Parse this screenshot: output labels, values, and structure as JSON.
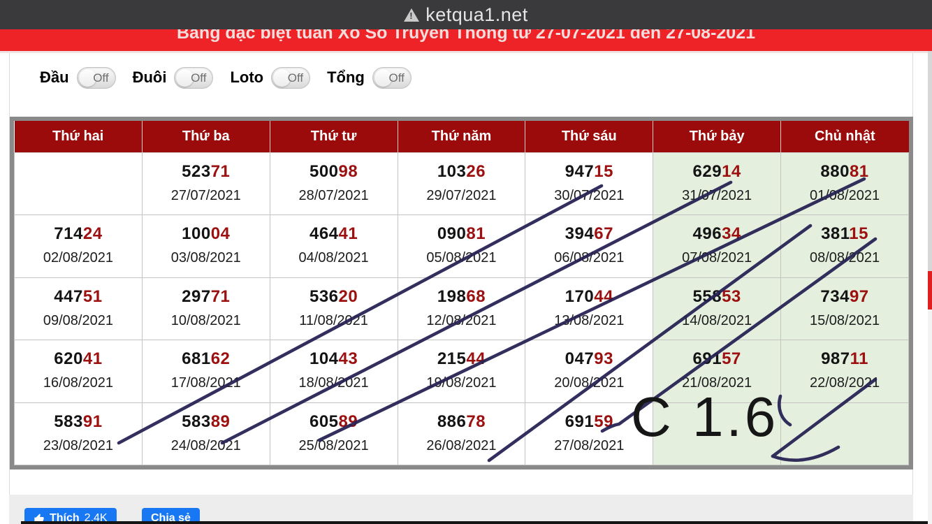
{
  "browser_bar": {
    "title": "ketqua1.net",
    "warning_icon": "not-secure-warning"
  },
  "banner": {
    "title": "Bảng đặc biệt tuần Xổ Số Truyền Thống từ 27-07-2021 đến 27-08-2021"
  },
  "filters": [
    {
      "label": "Đầu",
      "state": "Off"
    },
    {
      "label": "Đuôi",
      "state": "Off"
    },
    {
      "label": "Loto",
      "state": "Off"
    },
    {
      "label": "Tổng",
      "state": "Off"
    }
  ],
  "table": {
    "headers": [
      "Thứ hai",
      "Thứ ba",
      "Thứ tư",
      "Thứ năm",
      "Thứ sáu",
      "Thứ bảy",
      "Chủ nhật"
    ],
    "weekend_columns": [
      5,
      6
    ],
    "rows": [
      [
        null,
        {
          "n3": "523",
          "n2": "71",
          "date": "27/07/2021"
        },
        {
          "n3": "500",
          "n2": "98",
          "date": "28/07/2021"
        },
        {
          "n3": "103",
          "n2": "26",
          "date": "29/07/2021"
        },
        {
          "n3": "947",
          "n2": "15",
          "date": "30/07/2021"
        },
        {
          "n3": "629",
          "n2": "14",
          "date": "31/07/2021"
        },
        {
          "n3": "880",
          "n2": "81",
          "date": "01/08/2021"
        }
      ],
      [
        {
          "n3": "714",
          "n2": "24",
          "date": "02/08/2021"
        },
        {
          "n3": "100",
          "n2": "04",
          "date": "03/08/2021"
        },
        {
          "n3": "464",
          "n2": "41",
          "date": "04/08/2021"
        },
        {
          "n3": "090",
          "n2": "81",
          "date": "05/08/2021"
        },
        {
          "n3": "394",
          "n2": "67",
          "date": "06/08/2021"
        },
        {
          "n3": "496",
          "n2": "34",
          "date": "07/08/2021"
        },
        {
          "n3": "381",
          "n2": "15",
          "date": "08/08/2021"
        }
      ],
      [
        {
          "n3": "447",
          "n2": "51",
          "date": "09/08/2021"
        },
        {
          "n3": "297",
          "n2": "71",
          "date": "10/08/2021"
        },
        {
          "n3": "536",
          "n2": "20",
          "date": "11/08/2021"
        },
        {
          "n3": "198",
          "n2": "68",
          "date": "12/08/2021"
        },
        {
          "n3": "170",
          "n2": "44",
          "date": "13/08/2021"
        },
        {
          "n3": "558",
          "n2": "53",
          "date": "14/08/2021"
        },
        {
          "n3": "734",
          "n2": "97",
          "date": "15/08/2021"
        }
      ],
      [
        {
          "n3": "620",
          "n2": "41",
          "date": "16/08/2021"
        },
        {
          "n3": "681",
          "n2": "62",
          "date": "17/08/2021"
        },
        {
          "n3": "104",
          "n2": "43",
          "date": "18/08/2021"
        },
        {
          "n3": "215",
          "n2": "44",
          "date": "19/08/2021"
        },
        {
          "n3": "047",
          "n2": "93",
          "date": "20/08/2021"
        },
        {
          "n3": "691",
          "n2": "57",
          "date": "21/08/2021"
        },
        {
          "n3": "987",
          "n2": "11",
          "date": "22/08/2021"
        }
      ],
      [
        {
          "n3": "583",
          "n2": "91",
          "date": "23/08/2021"
        },
        {
          "n3": "583",
          "n2": "89",
          "date": "24/08/2021"
        },
        {
          "n3": "605",
          "n2": "89",
          "date": "25/08/2021"
        },
        {
          "n3": "886",
          "n2": "78",
          "date": "26/08/2021"
        },
        {
          "n3": "691",
          "n2": "59",
          "date": "27/08/2021"
        },
        null,
        null
      ]
    ]
  },
  "annotation": {
    "text": "C 1.6"
  },
  "footer": {
    "like_label": "Thích",
    "like_count": "2,4K",
    "share_label": "Chia sẻ"
  },
  "colors": {
    "topbar_bg": "#3a3a3c",
    "banner_red": "#ee2327",
    "header_bg": "#9b0b0b",
    "weekend_green": "#e4efde",
    "number_accent": "#9c1010",
    "annotation_navy": "#262254",
    "facebook_blue": "#1877f2"
  }
}
